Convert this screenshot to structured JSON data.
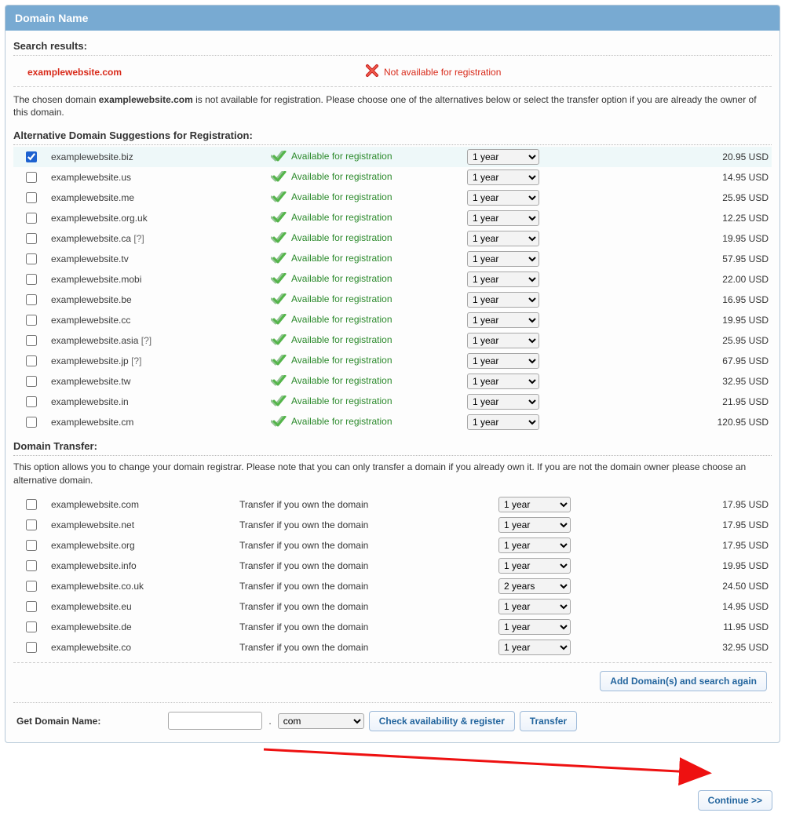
{
  "header": {
    "title": "Domain Name"
  },
  "search": {
    "results_label": "Search results:",
    "domain": "examplewebsite.com",
    "na_text": "Not available for registration",
    "explain_pre": "The chosen domain ",
    "explain_bold": "examplewebsite.com",
    "explain_post": " is not available for registration. Please choose one of the alternatives below or select the transfer option if you are already the owner of this domain."
  },
  "alt_section": {
    "label": "Alternative Domain Suggestions for Registration:",
    "status_text": "Available for registration",
    "term_default": "1 year",
    "rows": [
      {
        "domain": "examplewebsite.biz",
        "hint": "",
        "price": "20.95 USD",
        "checked": true
      },
      {
        "domain": "examplewebsite.us",
        "hint": "",
        "price": "14.95 USD",
        "checked": false
      },
      {
        "domain": "examplewebsite.me",
        "hint": "",
        "price": "25.95 USD",
        "checked": false
      },
      {
        "domain": "examplewebsite.org.uk",
        "hint": "",
        "price": "12.25 USD",
        "checked": false
      },
      {
        "domain": "examplewebsite.ca",
        "hint": "[?]",
        "price": "19.95 USD",
        "checked": false
      },
      {
        "domain": "examplewebsite.tv",
        "hint": "",
        "price": "57.95 USD",
        "checked": false
      },
      {
        "domain": "examplewebsite.mobi",
        "hint": "",
        "price": "22.00 USD",
        "checked": false
      },
      {
        "domain": "examplewebsite.be",
        "hint": "",
        "price": "16.95 USD",
        "checked": false
      },
      {
        "domain": "examplewebsite.cc",
        "hint": "",
        "price": "19.95 USD",
        "checked": false
      },
      {
        "domain": "examplewebsite.asia",
        "hint": "[?]",
        "price": "25.95 USD",
        "checked": false
      },
      {
        "domain": "examplewebsite.jp",
        "hint": "[?]",
        "price": "67.95 USD",
        "checked": false
      },
      {
        "domain": "examplewebsite.tw",
        "hint": "",
        "price": "32.95 USD",
        "checked": false
      },
      {
        "domain": "examplewebsite.in",
        "hint": "",
        "price": "21.95 USD",
        "checked": false
      },
      {
        "domain": "examplewebsite.cm",
        "hint": "",
        "price": "120.95 USD",
        "checked": false
      }
    ]
  },
  "transfer_section": {
    "label": "Domain Transfer:",
    "note": "This option allows you to change your domain registrar. Please note that you can only transfer a domain if you already own it. If you are not the domain owner please choose an alternative domain.",
    "status_text": "Transfer if you own the domain",
    "rows": [
      {
        "domain": "examplewebsite.com",
        "term": "1 year",
        "price": "17.95 USD"
      },
      {
        "domain": "examplewebsite.net",
        "term": "1 year",
        "price": "17.95 USD"
      },
      {
        "domain": "examplewebsite.org",
        "term": "1 year",
        "price": "17.95 USD"
      },
      {
        "domain": "examplewebsite.info",
        "term": "1 year",
        "price": "19.95 USD"
      },
      {
        "domain": "examplewebsite.co.uk",
        "term": "2 years",
        "price": "24.50 USD"
      },
      {
        "domain": "examplewebsite.eu",
        "term": "1 year",
        "price": "14.95 USD"
      },
      {
        "domain": "examplewebsite.de",
        "term": "1 year",
        "price": "11.95 USD"
      },
      {
        "domain": "examplewebsite.co",
        "term": "1 year",
        "price": "32.95 USD"
      }
    ]
  },
  "buttons": {
    "add_again": "Add Domain(s) and search again",
    "check": "Check availability & register",
    "transfer": "Transfer",
    "continue": "Continue >>"
  },
  "get_domain": {
    "label": "Get Domain Name:",
    "tld": "com",
    "dot": "."
  },
  "colors": {
    "header_bg": "#78aad2",
    "available_green": "#2c8a2c",
    "unavailable_red": "#d82a1a",
    "arrow_red": "#e11"
  }
}
